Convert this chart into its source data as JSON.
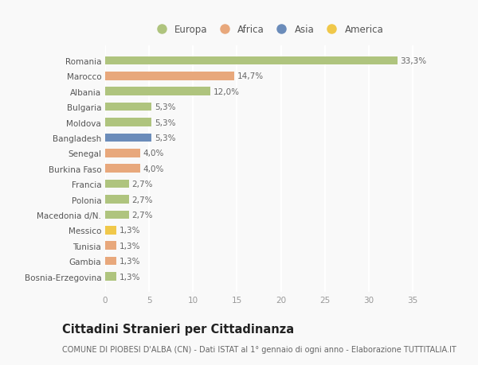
{
  "countries": [
    "Romania",
    "Marocco",
    "Albania",
    "Bulgaria",
    "Moldova",
    "Bangladesh",
    "Senegal",
    "Burkina Faso",
    "Francia",
    "Polonia",
    "Macedonia d/N.",
    "Messico",
    "Tunisia",
    "Gambia",
    "Bosnia-Erzegovina"
  ],
  "values": [
    33.3,
    14.7,
    12.0,
    5.3,
    5.3,
    5.3,
    4.0,
    4.0,
    2.7,
    2.7,
    2.7,
    1.3,
    1.3,
    1.3,
    1.3
  ],
  "labels": [
    "33,3%",
    "14,7%",
    "12,0%",
    "5,3%",
    "5,3%",
    "5,3%",
    "4,0%",
    "4,0%",
    "2,7%",
    "2,7%",
    "2,7%",
    "1,3%",
    "1,3%",
    "1,3%",
    "1,3%"
  ],
  "colors": [
    "#afc47e",
    "#e8a87c",
    "#afc47e",
    "#afc47e",
    "#afc47e",
    "#6b8cba",
    "#e8a87c",
    "#e8a87c",
    "#afc47e",
    "#afc47e",
    "#afc47e",
    "#f0c84a",
    "#e8a87c",
    "#e8a87c",
    "#afc47e"
  ],
  "legend_labels": [
    "Europa",
    "Africa",
    "Asia",
    "America"
  ],
  "legend_colors": [
    "#afc47e",
    "#e8a87c",
    "#6b8cba",
    "#f0c84a"
  ],
  "xlim": [
    0,
    37
  ],
  "xticks": [
    0,
    5,
    10,
    15,
    20,
    25,
    30,
    35
  ],
  "title": "Cittadini Stranieri per Cittadinanza",
  "subtitle": "COMUNE DI PIOBESI D'ALBA (CN) - Dati ISTAT al 1° gennaio di ogni anno - Elaborazione TUTTITALIA.IT",
  "background_color": "#f9f9f9",
  "grid_color": "#ffffff",
  "bar_height": 0.55,
  "label_fontsize": 7.5,
  "tick_fontsize": 7.5,
  "title_fontsize": 10.5,
  "subtitle_fontsize": 7.0,
  "legend_fontsize": 8.5
}
